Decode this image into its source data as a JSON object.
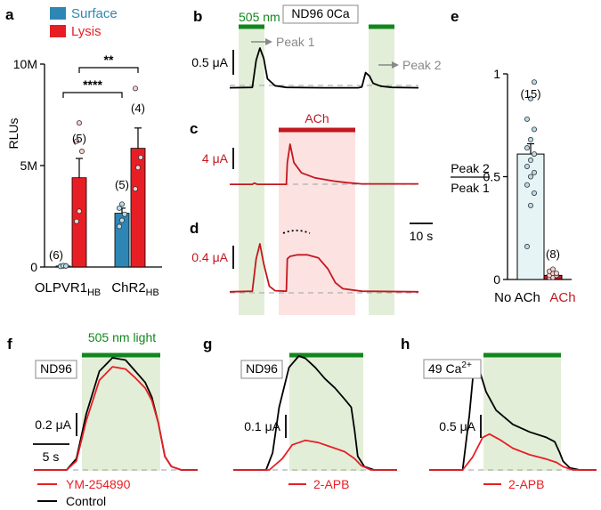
{
  "colors": {
    "surface": "#2e86b5",
    "lysis": "#e81e25",
    "light_green": "#11871d",
    "green_shade": "#e3eed8",
    "ach_red": "#c2181f",
    "ach_shade": "#fde2e2",
    "dash": "#b0b0b0",
    "point_surface": "#b8dcea",
    "point_lysis": "#fbd0d0",
    "peak_arrow": "#888888",
    "e_bar1": "#e6f4f6"
  },
  "panels": {
    "a": "a",
    "b": "b",
    "c": "c",
    "d": "d",
    "e": "e",
    "f": "f",
    "g": "g",
    "h": "h"
  },
  "panel_b": {
    "light_label": "505 nm",
    "solution_label": "ND96 0Ca",
    "peak1": "Peak 1",
    "peak2": "Peak 2",
    "scale": "0.5 μA"
  },
  "panel_c": {
    "ach_label": "ACh",
    "scale": "4 μA"
  },
  "panel_d": {
    "scale": "0.4 μA",
    "time_scale": "10 s"
  },
  "panel_f": {
    "light_label": "505 nm light",
    "solution_label": "ND96",
    "scale": "0.2 μA",
    "time_scale": "5 s",
    "legend_red": "YM-254890",
    "legend_black": "Control"
  },
  "panel_g": {
    "solution_label": "ND96",
    "scale": "0.1 μA",
    "legend_red": "2-APB"
  },
  "panel_h": {
    "solution_label_main": "49 Ca",
    "solution_label_sup": "2+",
    "scale": "0.5 μA",
    "legend_red": "2-APB"
  },
  "chart_data": [
    {
      "panel": "a",
      "type": "bar",
      "ylabel": "RLUs",
      "ylim": [
        0,
        10000000
      ],
      "yticks": [
        "0",
        "5M",
        "10M"
      ],
      "categories": [
        {
          "main": "OLPVR1",
          "sub": "HB"
        },
        {
          "main": "ChR2",
          "sub": "HB"
        }
      ],
      "series": [
        {
          "name": "Surface",
          "values": [
            0.05,
            2.65
          ],
          "errors": [
            0.03,
            0.25
          ],
          "n": [
            "(6)",
            "(5)"
          ],
          "points": [
            [
              0.04,
              0.05,
              0.06,
              0.03,
              0.07,
              0.05
            ],
            [
              2.0,
              2.3,
              2.6,
              2.9,
              3.1
            ]
          ]
        },
        {
          "name": "Lysis",
          "values": [
            4.4,
            5.85
          ],
          "errors": [
            0.95,
            1.0
          ],
          "n": [
            "(5)",
            "(4)"
          ],
          "points": [
            [
              2.25,
              2.75,
              5.7,
              6.2,
              7.1
            ],
            [
              3.85,
              4.9,
              5.4,
              8.8
            ]
          ]
        }
      ],
      "unit_scale": "M",
      "significance": [
        {
          "label": "****",
          "from": "OLPVR1 Surface",
          "to": "ChR2 Surface"
        },
        {
          "label": "**",
          "from": "OLPVR1 Lysis",
          "to": "ChR2 Lysis"
        }
      ]
    },
    {
      "panel": "e",
      "type": "bar",
      "ylabel_num": "Peak 2",
      "ylabel_den": "Peak 1",
      "ylim": [
        0,
        1
      ],
      "yticks": [
        "0",
        "0.5",
        "1"
      ],
      "categories": [
        "No ACh",
        "ACh"
      ],
      "values": [
        0.61,
        0.02
      ],
      "errors": [
        0.05,
        0.01
      ],
      "n": [
        "(15)",
        "(8)"
      ],
      "points": [
        [
          0.16,
          0.36,
          0.42,
          0.46,
          0.5,
          0.52,
          0.55,
          0.58,
          0.61,
          0.64,
          0.68,
          0.73,
          0.78,
          0.88,
          0.96
        ],
        [
          0.01,
          0.01,
          0.02,
          0.02,
          0.03,
          0.03,
          0.04,
          0.05
        ]
      ]
    },
    {
      "panel": "b",
      "type": "line",
      "title": "ND96 0Ca",
      "xlim": [
        0,
        1
      ],
      "ylim": [
        0,
        1
      ],
      "series": [
        {
          "name": "current",
          "x": [
            0,
            0.12,
            0.14,
            0.16,
            0.18,
            0.2,
            0.24,
            0.3,
            0.5,
            0.68,
            0.7,
            0.72,
            0.74,
            0.76,
            0.8,
            0.86,
            1
          ],
          "y": [
            0.03,
            0.04,
            0.7,
            1.0,
            0.75,
            0.25,
            0.08,
            0.04,
            0.03,
            0.03,
            0.05,
            0.4,
            0.32,
            0.14,
            0.07,
            0.04,
            0.03
          ]
        }
      ]
    },
    {
      "panel": "c",
      "type": "line",
      "title": "ACh",
      "xlim": [
        0,
        1
      ],
      "ylim": [
        0,
        1
      ],
      "series": [
        {
          "name": "current",
          "x": [
            0,
            0.12,
            0.13,
            0.14,
            0.15,
            0.3,
            0.305,
            0.32,
            0.34,
            0.38,
            0.45,
            0.55,
            0.62,
            0.7,
            1
          ],
          "y": [
            0.02,
            0.02,
            0.05,
            0.03,
            0.02,
            0.02,
            0.55,
            1.0,
            0.55,
            0.3,
            0.18,
            0.1,
            0.06,
            0.03,
            0.03
          ]
        }
      ]
    },
    {
      "panel": "d",
      "type": "line",
      "xlim": [
        0,
        1
      ],
      "ylim": [
        0,
        1
      ],
      "series": [
        {
          "name": "current",
          "x": [
            0,
            0.12,
            0.14,
            0.16,
            0.18,
            0.21,
            0.24,
            0.3,
            0.305,
            0.32,
            0.36,
            0.41,
            0.44,
            0.47,
            0.52,
            0.56,
            0.6,
            0.7,
            1
          ],
          "y": [
            0.04,
            0.05,
            0.7,
            1.0,
            0.6,
            0.15,
            0.06,
            0.05,
            0.7,
            0.75,
            0.78,
            0.78,
            0.75,
            0.72,
            0.5,
            0.22,
            0.1,
            0.05,
            0.04
          ]
        }
      ]
    },
    {
      "panel": "f",
      "type": "line",
      "xlim": [
        0,
        1
      ],
      "ylim": [
        0,
        1
      ],
      "series": [
        {
          "name": "Control",
          "x": [
            0,
            0.2,
            0.26,
            0.32,
            0.4,
            0.48,
            0.56,
            0.62,
            0.68,
            0.72,
            0.76,
            0.8,
            0.84,
            0.9,
            1
          ],
          "y": [
            0.0,
            0.0,
            0.1,
            0.5,
            0.88,
            1.0,
            0.98,
            0.88,
            0.78,
            0.65,
            0.42,
            0.12,
            0.03,
            0.0,
            0.0
          ]
        },
        {
          "name": "YM-254890",
          "x": [
            0,
            0.2,
            0.26,
            0.32,
            0.4,
            0.48,
            0.56,
            0.62,
            0.68,
            0.72,
            0.76,
            0.8,
            0.84,
            0.9,
            1
          ],
          "y": [
            0.0,
            0.0,
            0.08,
            0.44,
            0.8,
            0.92,
            0.9,
            0.82,
            0.73,
            0.62,
            0.42,
            0.12,
            0.03,
            0.0,
            0.0
          ]
        }
      ]
    },
    {
      "panel": "g",
      "type": "line",
      "xlim": [
        0,
        1
      ],
      "ylim": [
        0,
        1
      ],
      "series": [
        {
          "name": "Control",
          "x": [
            0,
            0.2,
            0.24,
            0.28,
            0.34,
            0.4,
            0.44,
            0.5,
            0.56,
            0.62,
            0.68,
            0.72,
            0.74,
            0.76,
            0.8,
            0.86,
            1
          ],
          "y": [
            0.0,
            0.0,
            0.15,
            0.55,
            0.9,
            1.0,
            0.98,
            0.9,
            0.8,
            0.72,
            0.62,
            0.55,
            0.35,
            0.12,
            0.03,
            0.0,
            0.0
          ]
        },
        {
          "name": "2-APB",
          "x": [
            0,
            0.22,
            0.3,
            0.36,
            0.44,
            0.52,
            0.6,
            0.68,
            0.74,
            0.78,
            0.84,
            1
          ],
          "y": [
            0.0,
            0.0,
            0.1,
            0.22,
            0.26,
            0.24,
            0.2,
            0.16,
            0.1,
            0.04,
            0.0,
            0.0
          ]
        }
      ]
    },
    {
      "panel": "h",
      "type": "line",
      "xlim": [
        0,
        1
      ],
      "ylim": [
        0,
        1
      ],
      "series": [
        {
          "name": "Control",
          "x": [
            0,
            0.2,
            0.24,
            0.27,
            0.3,
            0.34,
            0.4,
            0.5,
            0.6,
            0.7,
            0.75,
            0.78,
            0.8,
            0.84,
            0.9,
            1
          ],
          "y": [
            0.0,
            0.0,
            0.5,
            1.0,
            0.92,
            0.72,
            0.55,
            0.42,
            0.35,
            0.3,
            0.26,
            0.16,
            0.08,
            0.02,
            0.0,
            0.0
          ]
        },
        {
          "name": "2-APB",
          "x": [
            0,
            0.2,
            0.26,
            0.32,
            0.36,
            0.42,
            0.5,
            0.6,
            0.7,
            0.76,
            0.8,
            0.86,
            1
          ],
          "y": [
            0.0,
            0.0,
            0.12,
            0.3,
            0.33,
            0.28,
            0.2,
            0.14,
            0.1,
            0.07,
            0.03,
            0.0,
            0.0
          ]
        }
      ]
    }
  ]
}
